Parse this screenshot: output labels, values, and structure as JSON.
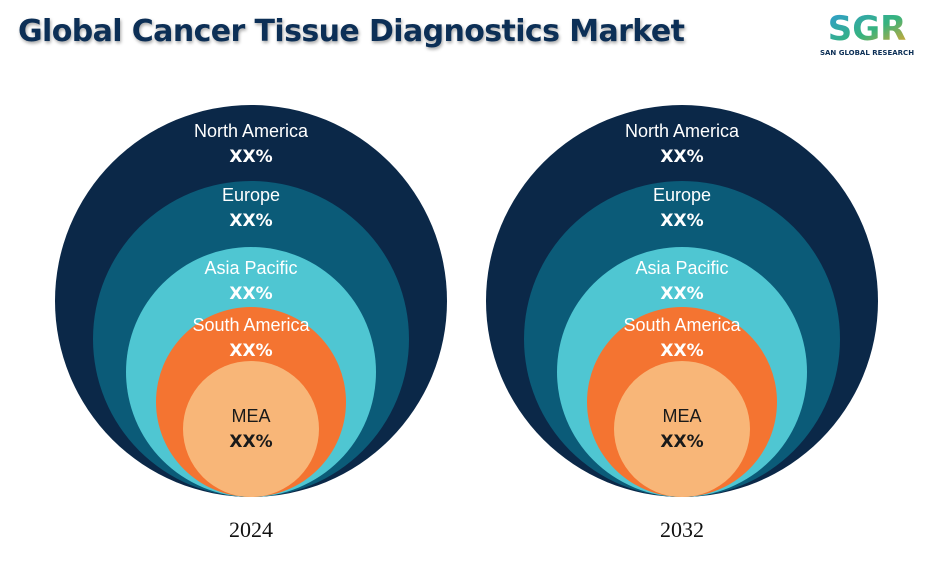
{
  "title": "Global Cancer Tissue Diagnostics Market",
  "logo": {
    "text": "SGR",
    "subtitle": "SAN GLOBAL RESEARCH",
    "colors": [
      "#2f9bd7",
      "#36b37e",
      "#f5a623"
    ]
  },
  "chart_data": {
    "type": "nested-circles",
    "title": "Global Cancer Tissue Diagnostics Market",
    "charts": [
      {
        "year": "2024",
        "segments": [
          {
            "name": "North America",
            "value": "XX%",
            "color": "#0b2848",
            "text_color": "#ffffff"
          },
          {
            "name": "Europe",
            "value": "XX%",
            "color": "#0b5b78",
            "text_color": "#ffffff"
          },
          {
            "name": "Asia Pacific",
            "value": "XX%",
            "color": "#4fc6d2",
            "text_color": "#ffffff"
          },
          {
            "name": "South America",
            "value": "XX%",
            "color": "#f47431",
            "text_color": "#ffffff"
          },
          {
            "name": "MEA",
            "value": "XX%",
            "color": "#f8b678",
            "text_color": "#1a1a1a"
          }
        ]
      },
      {
        "year": "2032",
        "segments": [
          {
            "name": "North America",
            "value": "XX%",
            "color": "#0b2848",
            "text_color": "#ffffff"
          },
          {
            "name": "Europe",
            "value": "XX%",
            "color": "#0b5b78",
            "text_color": "#ffffff"
          },
          {
            "name": "Asia Pacific",
            "value": "XX%",
            "color": "#4fc6d2",
            "text_color": "#ffffff"
          },
          {
            "name": "South America",
            "value": "XX%",
            "color": "#f47431",
            "text_color": "#ffffff"
          },
          {
            "name": "MEA",
            "value": "XX%",
            "color": "#f8b678",
            "text_color": "#1a1a1a"
          }
        ]
      }
    ]
  }
}
